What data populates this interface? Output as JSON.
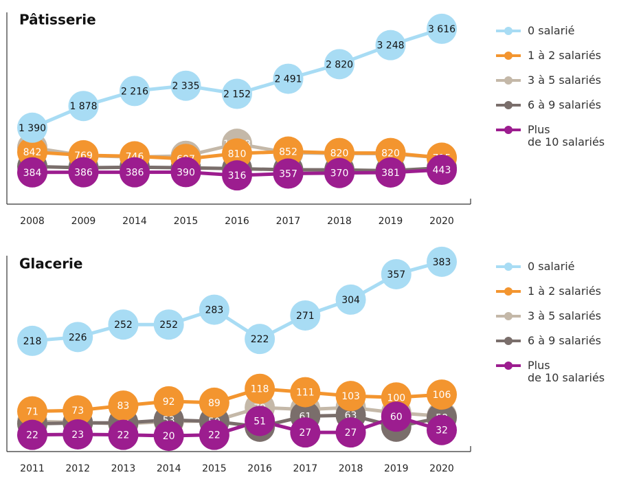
{
  "chart_data": [
    {
      "type": "line",
      "title": "Pâtisserie",
      "categories": [
        "2008",
        "2009",
        "2014",
        "2015",
        "2016",
        "2017",
        "2018",
        "2019",
        "2020"
      ],
      "ylim": [
        -300,
        3800
      ],
      "series": [
        {
          "name": "0 salarié",
          "color": "#a8dcf4",
          "values": [
            1390,
            1878,
            2216,
            2335,
            2152,
            2491,
            2820,
            3248,
            3616
          ],
          "value_labels": [
            "1 390",
            "1 878",
            "2 216",
            "2 335",
            "2 152",
            "2 491",
            "2 820",
            "3 248",
            "3 616"
          ]
        },
        {
          "name": "1 à 2 salariés",
          "color": "#f3952f",
          "values": [
            842,
            769,
            746,
            687,
            810,
            852,
            820,
            820,
            715
          ]
        },
        {
          "name": "3 à 5 salariés",
          "color": "#c4b8a8",
          "values": [
            943,
            762,
            729,
            756,
            1028,
            825,
            810,
            804,
            712
          ],
          "value_labels": [
            "943",
            "762",
            "729",
            "756",
            "1 028",
            "825",
            "810",
            "804",
            "712"
          ]
        },
        {
          "name": "6 à 9 salariés",
          "color": "#7a6e6b",
          "values": [
            516,
            488,
            501,
            488,
            467,
            443,
            440,
            422,
            486
          ]
        },
        {
          "name": "Plus\nde 10 salariés",
          "color": "#9c1d8f",
          "values": [
            384,
            386,
            386,
            390,
            316,
            357,
            370,
            381,
            443
          ]
        }
      ]
    },
    {
      "type": "line",
      "title": "Glacerie",
      "categories": [
        "2011",
        "2012",
        "2013",
        "2014",
        "2015",
        "2016",
        "2017",
        "2018",
        "2019",
        "2020"
      ],
      "ylim": [
        -10,
        420
      ],
      "series": [
        {
          "name": "0 salarié",
          "color": "#a8dcf4",
          "values": [
            218,
            226,
            252,
            252,
            283,
            222,
            271,
            304,
            357,
            383
          ]
        },
        {
          "name": "1 à 2 salariés",
          "color": "#f3952f",
          "values": [
            71,
            73,
            83,
            92,
            89,
            118,
            111,
            103,
            100,
            106
          ]
        },
        {
          "name": "3 à 5 salariés",
          "color": "#c4b8a8",
          "values": [
            50,
            48,
            45,
            50,
            51,
            79,
            75,
            79,
            68,
            61
          ]
        },
        {
          "name": "6 à 9 salariés",
          "color": "#7a6e6b",
          "values": [
            45,
            47,
            47,
            53,
            50,
            39,
            61,
            63,
            39,
            58
          ]
        },
        {
          "name": "Plus\nde 10 salariés",
          "color": "#9c1d8f",
          "values": [
            22,
            23,
            22,
            20,
            22,
            51,
            27,
            27,
            60,
            32
          ]
        }
      ]
    }
  ]
}
